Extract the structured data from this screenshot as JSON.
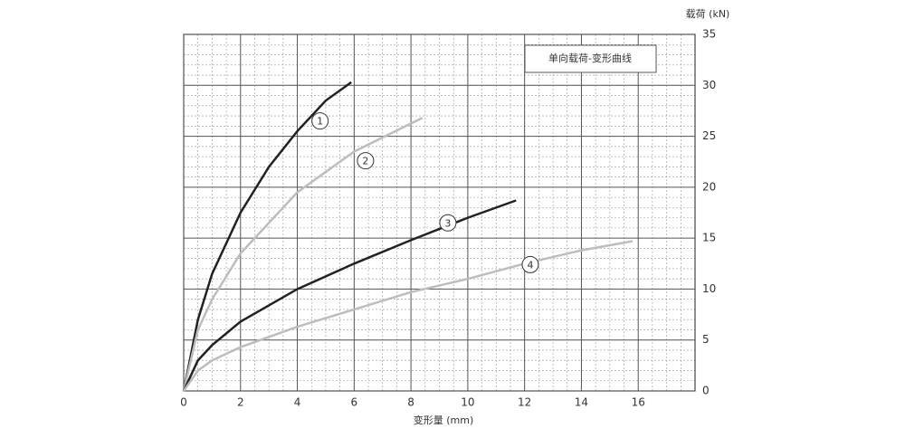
{
  "chart_data": {
    "type": "line",
    "title": "单向载荷-变形曲线",
    "x_label": "变形量 (mm)",
    "y_label": "载荷 (kN)",
    "xlim": [
      0,
      18
    ],
    "xticks": [
      0,
      2,
      4,
      6,
      8,
      10,
      12,
      14,
      16
    ],
    "ylim": [
      0,
      35
    ],
    "yticks": [
      0,
      5,
      10,
      15,
      20,
      25,
      30,
      35
    ],
    "grid": true,
    "series": [
      {
        "name": "1",
        "color": "#222222",
        "x": [
          0,
          0.5,
          1,
          2,
          3,
          4,
          5,
          5.9
        ],
        "values": [
          0,
          7,
          11.5,
          17.5,
          22,
          25.5,
          28.5,
          30.3
        ]
      },
      {
        "name": "2",
        "color": "#bdbdbd",
        "x": [
          0,
          0.5,
          1,
          2,
          4,
          6,
          8.4
        ],
        "values": [
          0,
          6,
          9,
          13.5,
          19.5,
          23.5,
          26.8
        ]
      },
      {
        "name": "3",
        "color": "#222222",
        "x": [
          0,
          0.5,
          1,
          2,
          4,
          6,
          8,
          10,
          11.7
        ],
        "values": [
          0,
          3,
          4.5,
          6.8,
          10,
          12.5,
          14.8,
          17,
          18.7
        ]
      },
      {
        "name": "4",
        "color": "#bdbdbd",
        "x": [
          0,
          0.5,
          1,
          2,
          4,
          6,
          8,
          10,
          12,
          14,
          15.8
        ],
        "values": [
          0,
          2,
          3,
          4.3,
          6.3,
          8,
          9.7,
          11,
          12.5,
          13.8,
          14.7
        ]
      }
    ]
  }
}
